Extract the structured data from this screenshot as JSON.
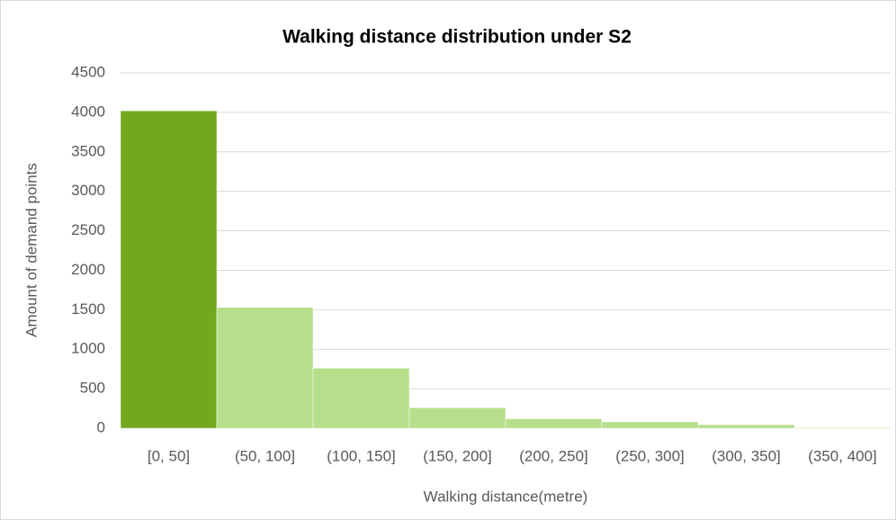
{
  "chart_data": {
    "type": "bar",
    "title": "Walking distance distribution under S2",
    "x_label": "Walking distance(metre)",
    "y_label": "Amount of demand points",
    "categories": [
      "[0, 50]",
      "(50, 100]",
      "(100, 150]",
      "(150, 200]",
      "(200, 250]",
      "(250, 300]",
      "(300, 350]",
      "(350, 400]"
    ],
    "values": [
      4020,
      1530,
      760,
      260,
      120,
      80,
      45,
      10
    ],
    "colors": [
      "#73a81e",
      "#b5df8a",
      "#b5df8a",
      "#b5df8a",
      "#b5df8a",
      "#b5df8a",
      "#b5df8a",
      "#b5df8a"
    ],
    "ylim": [
      0,
      4500
    ],
    "yticks": [
      0,
      500,
      1000,
      1500,
      2000,
      2500,
      3000,
      3500,
      4000,
      4500
    ],
    "grid": true
  }
}
